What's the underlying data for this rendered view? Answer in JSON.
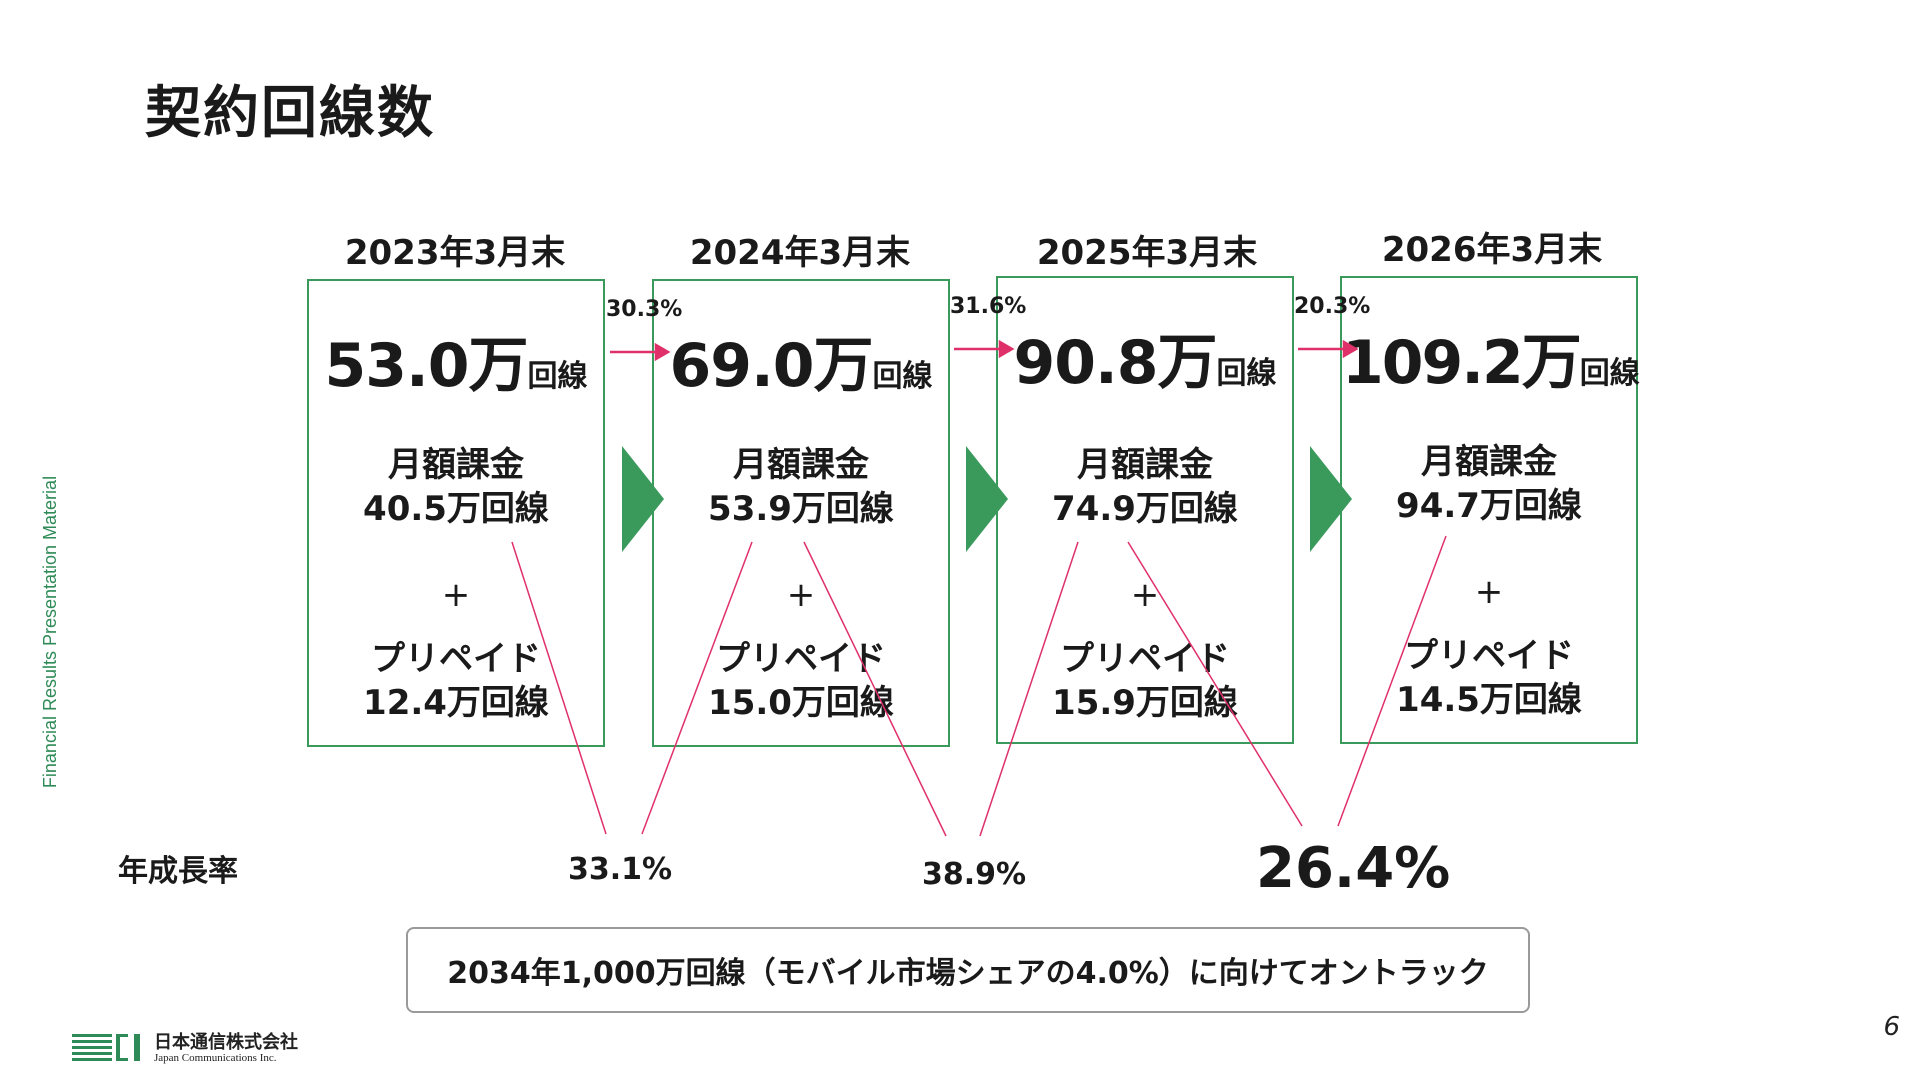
{
  "title": "契約回線数",
  "side_label": "Financial Results Presentation Material",
  "columns": [
    {
      "head": "2023年3月末",
      "total_num": "53.0万",
      "total_unit": "回線",
      "monthly_label": "月額課金",
      "monthly_value": "40.5万回線",
      "plus": "+",
      "prepaid_label": "プリペイド",
      "prepaid_value": "12.4万回線"
    },
    {
      "head": "2024年3月末",
      "total_num": "69.0万",
      "total_unit": "回線",
      "monthly_label": "月額課金",
      "monthly_value": "53.9万回線",
      "plus": "+",
      "prepaid_label": "プリペイド",
      "prepaid_value": "15.0万回線"
    },
    {
      "head": "2025年3月末",
      "total_num": "90.8万",
      "total_unit": "回線",
      "monthly_label": "月額課金",
      "monthly_value": "74.9万回線",
      "plus": "+",
      "prepaid_label": "プリペイド",
      "prepaid_value": "15.9万回線"
    },
    {
      "head": "2026年3月末",
      "total_num": "109.2万",
      "total_unit": "回線",
      "monthly_label": "月額課金",
      "monthly_value": "94.7万回線",
      "plus": "+",
      "prepaid_label": "プリペイド",
      "prepaid_value": "14.5万回線"
    }
  ],
  "growth_labels": [
    "30.3%",
    "31.6%",
    "20.3%"
  ],
  "row_label": "年成長率",
  "annual_rates": [
    "33.1%",
    "38.9%",
    "26.4%"
  ],
  "banner": "2034年1,000万回線（モバイル市場シェアの4.0%）に向けてオントラック",
  "page_number": "6",
  "logo": {
    "jp": "日本通信株式会社",
    "en": "Japan Communications Inc."
  },
  "colors": {
    "accent_green": "#3a9a5c",
    "arrow_green": "#3a9a5c",
    "growth_pink": "#e0306a",
    "border_gray": "#9a9a9a"
  }
}
